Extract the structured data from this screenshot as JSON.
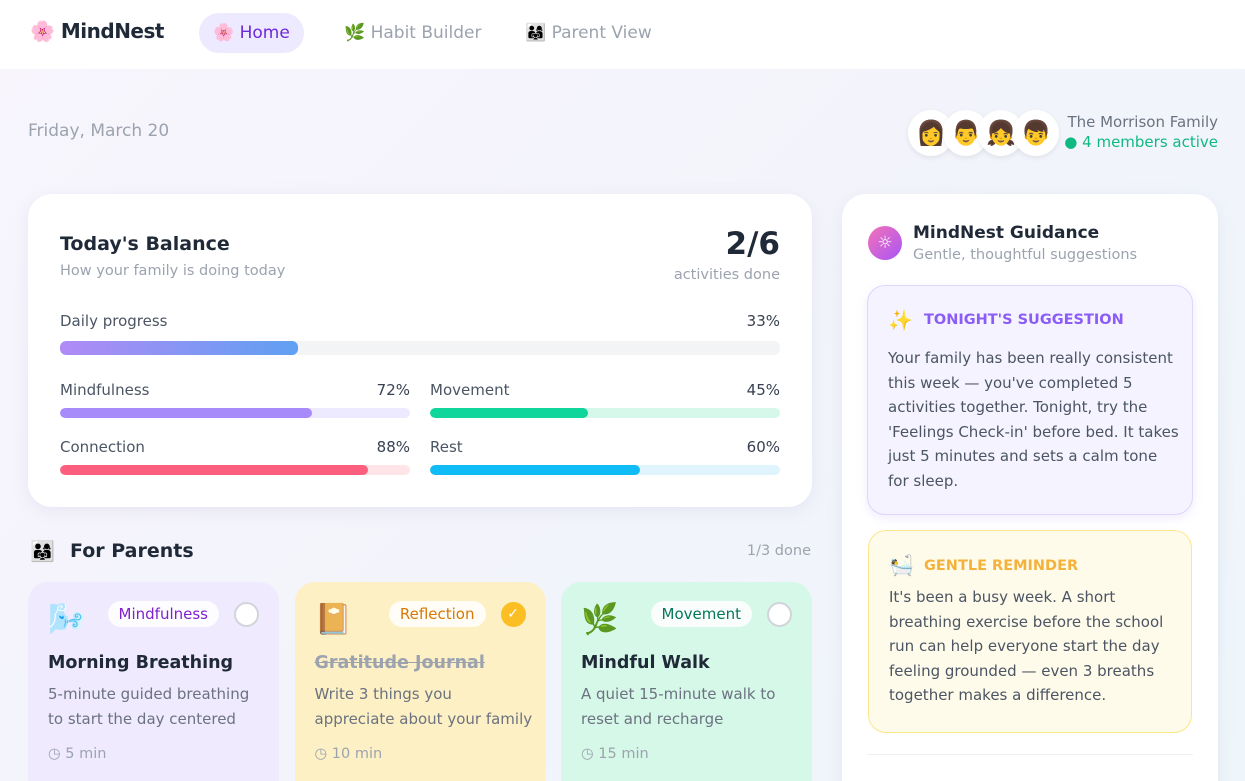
{
  "nav": {
    "brand": "MindNest",
    "tabs": [
      "Home",
      "Habit Builder",
      "Parent View"
    ],
    "active": 0
  },
  "header": {
    "date": "Friday, March 20",
    "family": "The Morrison Family",
    "status": "4 members active"
  },
  "balance": {
    "title": "Today's Balance",
    "subtitle": "How your family is doing today",
    "done": "2/6",
    "done_label": "activities done",
    "daily": {
      "name": "Daily progress",
      "value": 33,
      "label": "33%"
    },
    "areas": [
      {
        "name": "Mindfulness",
        "value": 72,
        "label": "72%",
        "color": "#a78bfa",
        "track": "#ede9fe"
      },
      {
        "name": "Movement",
        "value": 45,
        "label": "45%",
        "color": "#10d69b",
        "track": "#d5f8ea"
      },
      {
        "name": "Connection",
        "value": 88,
        "label": "88%",
        "color": "#fb5f7d",
        "track": "#ffe4e8"
      },
      {
        "name": "Rest",
        "value": 60,
        "label": "60%",
        "color": "#0fbcf5",
        "track": "#e0f4fd"
      }
    ]
  },
  "parents": {
    "title": "For Parents",
    "done": "1/3 done",
    "cards": [
      {
        "tag": "Mindfulness",
        "title": "Morning Breathing",
        "description": "5-minute guided breathing to start the day centered",
        "time": "5 min",
        "done": false
      },
      {
        "tag": "Reflection",
        "title": "Gratitude Journal",
        "description": "Write 3 things you appreciate about your family",
        "time": "10 min",
        "done": true
      },
      {
        "tag": "Movement",
        "title": "Mindful Walk",
        "description": "A quiet 15-minute walk to reset and recharge",
        "time": "15 min",
        "done": false
      }
    ]
  },
  "guidance": {
    "title": "MindNest Guidance",
    "subtitle": "Gentle, thoughtful suggestions",
    "suggestion": {
      "heading": "TONIGHT'S SUGGESTION",
      "text": "Your family has been really consistent this week — you've completed 5 activities together. Tonight, try the 'Feelings Check-in' before bed. It takes just 5 minutes and sets a calm tone for sleep."
    },
    "reminder": {
      "heading": "GENTLE REMINDER",
      "text": "It's been a busy week. A short breathing exercise before the school run can help everyone start the day feeling grounded — even 3 breaths together makes a difference."
    }
  }
}
